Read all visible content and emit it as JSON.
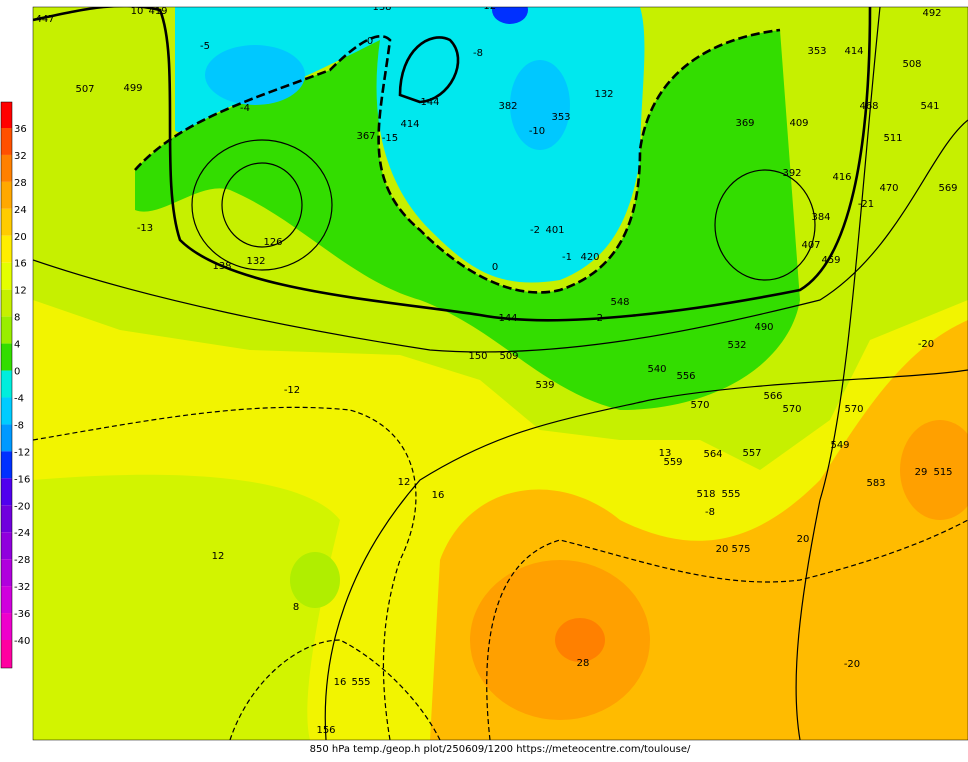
{
  "colorbar": {
    "labels": [
      "36",
      "32",
      "28",
      "24",
      "20",
      "16",
      "12",
      "8",
      "4",
      "0",
      "-4",
      "-8",
      "-12",
      "-16",
      "-20",
      "-24",
      "-28",
      "-32",
      "-36",
      "-40"
    ],
    "colors": [
      "#ff0000",
      "#ff5000",
      "#ff8000",
      "#ffa800",
      "#ffcc00",
      "#ffee00",
      "#e4ff00",
      "#c6f000",
      "#99ee00",
      "#33dd00",
      "#00eedd",
      "#00ccff",
      "#0099ff",
      "#0030ff",
      "#5000ee",
      "#7000dd",
      "#9000dd",
      "#b000dd",
      "#d000dd",
      "#ee00cc",
      "#ff00a0"
    ]
  },
  "map": {
    "labels": [
      "447",
      "10",
      "419",
      "138",
      "-12",
      "-5",
      "0",
      "-8",
      "382",
      "-10",
      "353",
      "132",
      "144",
      "414",
      "-15",
      "367",
      "499",
      "507",
      "-4",
      "-13",
      "126",
      "132",
      "138",
      "-2",
      "401",
      "-1",
      "420",
      "0",
      "144",
      "548",
      "-2",
      "150",
      "509",
      "539",
      "-12",
      "12",
      "16",
      "12",
      "8",
      "16",
      "555",
      "156",
      "28",
      "-20",
      "20",
      "20",
      "575",
      "518",
      "555",
      "-8",
      "559",
      "13",
      "564",
      "557",
      "-20",
      "515",
      "29",
      "583",
      "-21",
      "470",
      "569",
      "541",
      "508",
      "492",
      "468",
      "511",
      "414",
      "353",
      "369",
      "409",
      "384",
      "392",
      "416",
      "459",
      "407",
      "490",
      "532",
      "556",
      "570",
      "566",
      "570",
      "540",
      "549",
      "570"
    ]
  },
  "caption": "850 hPa temp./geop.h plot/250609/1200 https://meteocentre.com/toulouse/"
}
